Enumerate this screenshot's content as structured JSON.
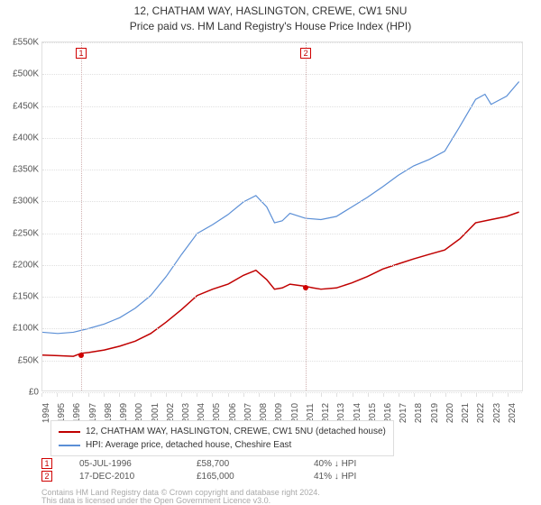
{
  "title": {
    "line1": "12, CHATHAM WAY, HASLINGTON, CREWE, CW1 5NU",
    "line2": "Price paid vs. HM Land Registry's House Price Index (HPI)"
  },
  "chart": {
    "type": "line",
    "background_color": "#ffffff",
    "grid_color": "#e0e0e0",
    "xlim": [
      1994,
      2025
    ],
    "ylim": [
      0,
      550000
    ],
    "ytick_step": 50000,
    "y_tick_labels": [
      "£0",
      "£50K",
      "£100K",
      "£150K",
      "£200K",
      "£250K",
      "£300K",
      "£350K",
      "£400K",
      "£450K",
      "£500K",
      "£550K"
    ],
    "x_ticks": [
      1994,
      1995,
      1996,
      1997,
      1998,
      1999,
      2000,
      2001,
      2002,
      2003,
      2004,
      2005,
      2006,
      2007,
      2008,
      2009,
      2010,
      2011,
      2012,
      2013,
      2014,
      2015,
      2016,
      2017,
      2018,
      2019,
      2020,
      2021,
      2022,
      2023,
      2024
    ],
    "label_fontsize": 10,
    "series": [
      {
        "name": "property",
        "label": "12, CHATHAM WAY, HASLINGTON, CREWE, CW1 5NU (detached house)",
        "color": "#c00000",
        "line_width": 1.5,
        "points": [
          [
            1994.0,
            56000
          ],
          [
            1995.0,
            55000
          ],
          [
            1996.0,
            54000
          ],
          [
            1996.5,
            58700
          ],
          [
            1997.0,
            60000
          ],
          [
            1998.0,
            64000
          ],
          [
            1999.0,
            70000
          ],
          [
            2000.0,
            78000
          ],
          [
            2001.0,
            90000
          ],
          [
            2002.0,
            108000
          ],
          [
            2003.0,
            128000
          ],
          [
            2004.0,
            150000
          ],
          [
            2005.0,
            160000
          ],
          [
            2006.0,
            168000
          ],
          [
            2007.0,
            182000
          ],
          [
            2007.8,
            190000
          ],
          [
            2008.5,
            175000
          ],
          [
            2009.0,
            160000
          ],
          [
            2009.5,
            162000
          ],
          [
            2010.0,
            168000
          ],
          [
            2010.9,
            165000
          ],
          [
            2011.5,
            162000
          ],
          [
            2012.0,
            160000
          ],
          [
            2013.0,
            162000
          ],
          [
            2014.0,
            170000
          ],
          [
            2015.0,
            180000
          ],
          [
            2016.0,
            192000
          ],
          [
            2017.0,
            200000
          ],
          [
            2018.0,
            208000
          ],
          [
            2019.0,
            215000
          ],
          [
            2020.0,
            222000
          ],
          [
            2021.0,
            240000
          ],
          [
            2022.0,
            265000
          ],
          [
            2023.0,
            270000
          ],
          [
            2024.0,
            275000
          ],
          [
            2024.8,
            282000
          ]
        ]
      },
      {
        "name": "hpi",
        "label": "HPI: Average price, detached house, Cheshire East",
        "color": "#5b8fd6",
        "line_width": 1.2,
        "points": [
          [
            1994.0,
            92000
          ],
          [
            1995.0,
            90000
          ],
          [
            1996.0,
            92000
          ],
          [
            1997.0,
            98000
          ],
          [
            1998.0,
            105000
          ],
          [
            1999.0,
            115000
          ],
          [
            2000.0,
            130000
          ],
          [
            2001.0,
            150000
          ],
          [
            2002.0,
            180000
          ],
          [
            2003.0,
            215000
          ],
          [
            2004.0,
            248000
          ],
          [
            2005.0,
            262000
          ],
          [
            2006.0,
            278000
          ],
          [
            2007.0,
            298000
          ],
          [
            2007.8,
            308000
          ],
          [
            2008.5,
            290000
          ],
          [
            2009.0,
            265000
          ],
          [
            2009.5,
            268000
          ],
          [
            2010.0,
            280000
          ],
          [
            2011.0,
            272000
          ],
          [
            2012.0,
            270000
          ],
          [
            2013.0,
            275000
          ],
          [
            2014.0,
            290000
          ],
          [
            2015.0,
            305000
          ],
          [
            2016.0,
            322000
          ],
          [
            2017.0,
            340000
          ],
          [
            2018.0,
            355000
          ],
          [
            2019.0,
            365000
          ],
          [
            2020.0,
            378000
          ],
          [
            2021.0,
            418000
          ],
          [
            2022.0,
            460000
          ],
          [
            2022.6,
            468000
          ],
          [
            2023.0,
            452000
          ],
          [
            2024.0,
            465000
          ],
          [
            2024.8,
            488000
          ]
        ]
      }
    ],
    "markers": [
      {
        "id": "1",
        "x": 1996.5,
        "y": 58700,
        "date": "05-JUL-1996",
        "price": "£58,700",
        "pct": "40%",
        "arrow": "↓",
        "vs": "HPI"
      },
      {
        "id": "2",
        "x": 2010.96,
        "y": 165000,
        "date": "17-DEC-2010",
        "price": "£165,000",
        "pct": "41%",
        "arrow": "↓",
        "vs": "HPI"
      }
    ]
  },
  "legend": {
    "items": [
      {
        "color": "#c00000",
        "label": "12, CHATHAM WAY, HASLINGTON, CREWE, CW1 5NU (detached house)"
      },
      {
        "color": "#5b8fd6",
        "label": "HPI: Average price, detached house, Cheshire East"
      }
    ]
  },
  "footnote": {
    "line1": "Contains HM Land Registry data © Crown copyright and database right 2024.",
    "line2": "This data is licensed under the Open Government Licence v3.0."
  }
}
